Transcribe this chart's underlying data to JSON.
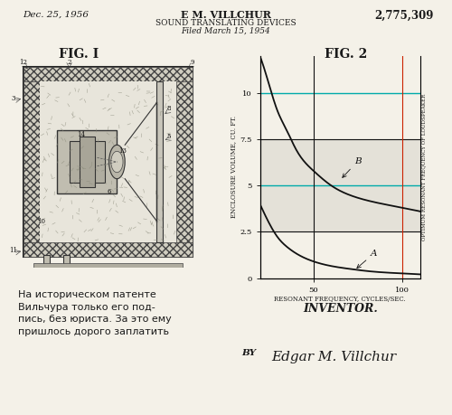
{
  "bg_color": "#f4f1e8",
  "header_date": "Dec. 25, 1956",
  "header_inventor": "E M. VILLCHUR",
  "header_patent": "2,775,309",
  "header_title": "SOUND TRANSLATING DEVICES",
  "header_filed": "Filed March 15, 1954",
  "fig1_label": "FIG. I",
  "fig2_label": "FIG. 2",
  "inventor_label": "INVENTOR.",
  "by_label": "BY",
  "signature": "Edgar M. Villchur",
  "russian_text": "На историческом патенте\nВильчура только его под-\nпись, без юриста. За это ему\nпришлось дорого заплатить",
  "graph_xlabel": "RESONANT FREQUENCY, CYCLES/SEC.",
  "graph_ylabel": "ENCLOSURE VOLUME, CU. FT.",
  "graph_ylabel2": "OPTIMUM RESONANT FREQUENCY OF LOUDSPEAKER",
  "curve_A_x": [
    20,
    25,
    30,
    35,
    40,
    50,
    60,
    70,
    80,
    100,
    110
  ],
  "curve_A_y": [
    4.0,
    3.0,
    2.2,
    1.7,
    1.35,
    0.9,
    0.65,
    0.5,
    0.38,
    0.25,
    0.2
  ],
  "curve_B_x": [
    20,
    25,
    30,
    35,
    40,
    50,
    60,
    70,
    80,
    100,
    110
  ],
  "curve_B_y": [
    12.0,
    10.5,
    9.0,
    8.0,
    7.0,
    5.8,
    5.0,
    4.5,
    4.2,
    3.8,
    3.6
  ],
  "hline_cyan1": 5.0,
  "hline_cyan2": 10.0,
  "hline_black1": 2.5,
  "hline_black2": 7.5,
  "vline_x1": 50,
  "vline_x2": 100,
  "xlim": [
    20,
    110
  ],
  "ylim": [
    0,
    12
  ],
  "xticks": [
    50,
    100
  ],
  "yticks": [
    0,
    2.5,
    5.0,
    7.5,
    10.0
  ],
  "text_color": "#1a1a1a",
  "curve_color": "#111111",
  "cyan_color": "#00aaaa",
  "red_color": "#cc2200",
  "gray_shade": "#e4e1d8"
}
